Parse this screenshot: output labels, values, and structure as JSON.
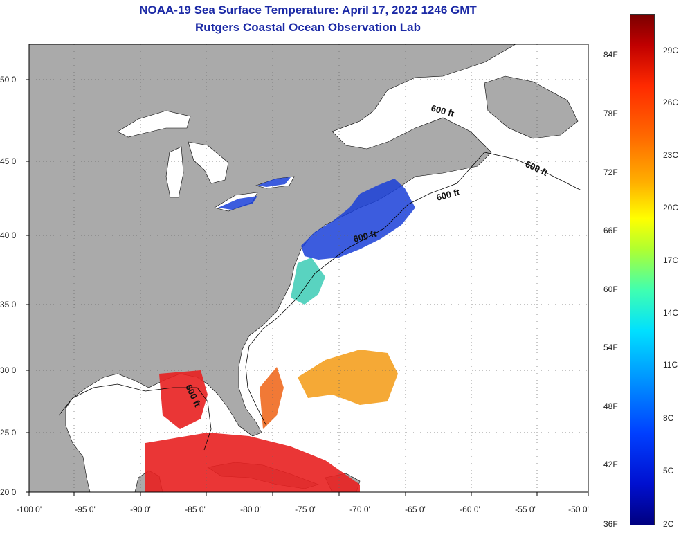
{
  "title": "NOAA-19 Sea Surface Temperature:  April 17, 2022 1246 GMT",
  "subtitle": "Rutgers Coastal Ocean Observation Lab",
  "x_ticks": [
    "-100 0'",
    "-95 0'",
    "-90 0'",
    "-85 0'",
    "-80 0'",
    "-75 0'",
    "-70 0'",
    "-65 0'",
    "-60 0'",
    "-55 0'",
    "-50 0'"
  ],
  "y_ticks": [
    "50 0'",
    "45 0'",
    "40 0'",
    "35 0'",
    "30 0'",
    "25 0'",
    "20 0'"
  ],
  "contour_label": "600 ft",
  "colorbar": {
    "fahrenheit": [
      "84F",
      "78F",
      "72F",
      "66F",
      "60F",
      "54F",
      "48F",
      "42F",
      "36F"
    ],
    "celsius": [
      "29C",
      "26C",
      "23C",
      "20C",
      "17C",
      "14C",
      "11C",
      "8C",
      "5C",
      "2C"
    ]
  },
  "colors": {
    "title": "#1c2aa6",
    "land": "#aaaaaa",
    "ocean": "#ffffff",
    "warm": "#e82020",
    "cold": "#1a3fd8"
  }
}
